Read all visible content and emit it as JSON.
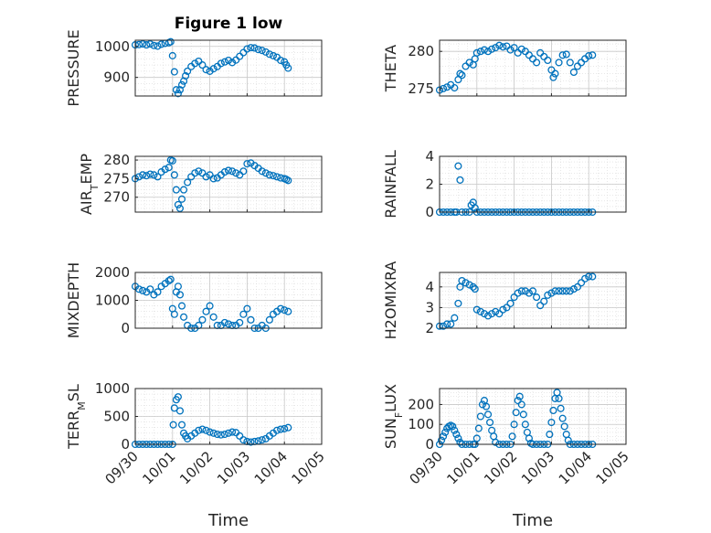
{
  "figure": {
    "title": "Figure 1 low"
  },
  "chart_data": [
    {
      "type": "scatter",
      "ylabel": "PRESSURE",
      "xlabel": "",
      "title": "Figure 1 low",
      "xlim": [
        0,
        5
      ],
      "ylim": [
        840,
        1020
      ],
      "yticks": [
        900,
        1000
      ],
      "x_ticks": [
        "09/30",
        "10/01",
        "10/02",
        "10/03",
        "10/04",
        "10/05"
      ],
      "series": [
        {
          "x": [
            0.0,
            0.1,
            0.2,
            0.3,
            0.4,
            0.5,
            0.6,
            0.7,
            0.8,
            0.9,
            0.95,
            1.0,
            1.05,
            1.1,
            1.15,
            1.2,
            1.25,
            1.3,
            1.35,
            1.4,
            1.5,
            1.6,
            1.7,
            1.8,
            1.9,
            2.0,
            2.1,
            2.2,
            2.3,
            2.4,
            2.5,
            2.6,
            2.7,
            2.8,
            2.9,
            3.0,
            3.1,
            3.2,
            3.3,
            3.4,
            3.5,
            3.6,
            3.7,
            3.8,
            3.9,
            4.0,
            4.05,
            4.1
          ],
          "y": [
            1005,
            1006,
            1008,
            1005,
            1008,
            1003,
            1001,
            1007,
            1010,
            1012,
            1015,
            970,
            918,
            860,
            848,
            860,
            876,
            888,
            905,
            920,
            935,
            945,
            952,
            940,
            925,
            920,
            928,
            935,
            945,
            950,
            955,
            948,
            956,
            968,
            980,
            992,
            996,
            995,
            990,
            987,
            982,
            975,
            970,
            965,
            955,
            950,
            940,
            930
          ]
        }
      ]
    },
    {
      "type": "scatter",
      "ylabel": "THETA",
      "xlabel": "",
      "xlim": [
        0,
        5
      ],
      "ylim": [
        274,
        281.5
      ],
      "yticks": [
        275,
        280
      ],
      "x_ticks": [
        "09/30",
        "10/01",
        "10/02",
        "10/03",
        "10/04",
        "10/05"
      ],
      "series": [
        {
          "x": [
            0.0,
            0.1,
            0.2,
            0.3,
            0.4,
            0.5,
            0.55,
            0.6,
            0.7,
            0.8,
            0.9,
            0.95,
            1.0,
            1.1,
            1.2,
            1.3,
            1.4,
            1.5,
            1.6,
            1.7,
            1.8,
            1.9,
            2.0,
            2.1,
            2.2,
            2.3,
            2.4,
            2.5,
            2.6,
            2.7,
            2.8,
            2.9,
            3.0,
            3.05,
            3.1,
            3.2,
            3.3,
            3.4,
            3.5,
            3.6,
            3.7,
            3.8,
            3.9,
            4.0,
            4.1
          ],
          "y": [
            274.8,
            275.0,
            275.2,
            275.5,
            275.1,
            276.2,
            277.0,
            276.8,
            278.0,
            278.5,
            278.2,
            279.0,
            279.8,
            280.0,
            280.2,
            280.0,
            280.3,
            280.5,
            280.8,
            280.6,
            280.7,
            280.2,
            280.5,
            279.8,
            280.3,
            280.0,
            279.5,
            279.0,
            278.5,
            279.8,
            279.3,
            278.8,
            277.5,
            276.5,
            277.0,
            278.5,
            279.5,
            279.6,
            278.5,
            277.2,
            278.0,
            278.5,
            279.0,
            279.4,
            279.5
          ]
        }
      ]
    },
    {
      "type": "scatter",
      "ylabel": "AIR_TEMP",
      "ylabel_main": "AIR",
      "ylabel_sub": "T",
      "ylabel_rest": "EMP",
      "xlabel": "",
      "xlim": [
        0,
        5
      ],
      "ylim": [
        266,
        281
      ],
      "yticks": [
        270,
        275,
        280
      ],
      "x_ticks": [
        "09/30",
        "10/01",
        "10/02",
        "10/03",
        "10/04",
        "10/05"
      ],
      "series": [
        {
          "x": [
            0.0,
            0.1,
            0.2,
            0.3,
            0.4,
            0.5,
            0.6,
            0.7,
            0.8,
            0.9,
            0.95,
            1.0,
            1.05,
            1.1,
            1.15,
            1.2,
            1.25,
            1.3,
            1.4,
            1.5,
            1.6,
            1.7,
            1.8,
            1.9,
            2.0,
            2.1,
            2.2,
            2.3,
            2.4,
            2.5,
            2.6,
            2.7,
            2.8,
            2.9,
            3.0,
            3.1,
            3.2,
            3.3,
            3.4,
            3.5,
            3.6,
            3.7,
            3.8,
            3.9,
            4.0,
            4.05,
            4.1
          ],
          "y": [
            275.0,
            275.5,
            276.0,
            275.8,
            276.2,
            276.0,
            275.5,
            276.8,
            277.5,
            278.0,
            280.0,
            279.8,
            276.0,
            272.0,
            268.0,
            267.0,
            269.5,
            272.0,
            274.0,
            275.5,
            276.5,
            277.0,
            276.5,
            275.5,
            276.0,
            275.0,
            275.2,
            276.0,
            276.8,
            277.2,
            277.0,
            276.5,
            276.0,
            277.0,
            279.0,
            279.2,
            278.5,
            277.8,
            277.0,
            276.5,
            276.0,
            275.8,
            275.5,
            275.2,
            275.0,
            274.8,
            274.5
          ]
        }
      ]
    },
    {
      "type": "scatter",
      "ylabel": "RAINFALL",
      "xlabel": "",
      "xlim": [
        0,
        5
      ],
      "ylim": [
        0,
        4
      ],
      "yticks": [
        0,
        2,
        4
      ],
      "x_ticks": [
        "09/30",
        "10/01",
        "10/02",
        "10/03",
        "10/04",
        "10/05"
      ],
      "series": [
        {
          "x": [
            0.0,
            0.1,
            0.2,
            0.3,
            0.4,
            0.45,
            0.5,
            0.55,
            0.6,
            0.7,
            0.8,
            0.85,
            0.9,
            0.95,
            1.0,
            1.1,
            1.2,
            1.3,
            1.4,
            1.5,
            1.6,
            1.7,
            1.8,
            1.9,
            2.0,
            2.1,
            2.2,
            2.3,
            2.4,
            2.5,
            2.6,
            2.7,
            2.8,
            2.9,
            3.0,
            3.1,
            3.2,
            3.3,
            3.4,
            3.5,
            3.6,
            3.7,
            3.8,
            3.9,
            4.0,
            4.1
          ],
          "y": [
            0,
            0,
            0,
            0,
            0,
            0,
            3.3,
            2.3,
            0,
            0,
            0,
            0.5,
            0.7,
            0.3,
            0,
            0,
            0,
            0,
            0,
            0,
            0,
            0,
            0,
            0,
            0,
            0,
            0,
            0,
            0,
            0,
            0,
            0,
            0,
            0,
            0,
            0,
            0,
            0,
            0,
            0,
            0,
            0,
            0,
            0,
            0,
            0
          ]
        }
      ]
    },
    {
      "type": "scatter",
      "ylabel": "MIXDEPTH",
      "xlabel": "",
      "xlim": [
        0,
        5
      ],
      "ylim": [
        0,
        2000
      ],
      "yticks": [
        0,
        1000,
        2000
      ],
      "x_ticks": [
        "09/30",
        "10/01",
        "10/02",
        "10/03",
        "10/04",
        "10/05"
      ],
      "series": [
        {
          "x": [
            0.0,
            0.1,
            0.2,
            0.3,
            0.4,
            0.5,
            0.6,
            0.7,
            0.8,
            0.9,
            0.95,
            1.0,
            1.05,
            1.1,
            1.15,
            1.2,
            1.25,
            1.3,
            1.4,
            1.5,
            1.6,
            1.7,
            1.8,
            1.9,
            2.0,
            2.1,
            2.2,
            2.3,
            2.4,
            2.5,
            2.6,
            2.7,
            2.8,
            2.9,
            3.0,
            3.1,
            3.2,
            3.3,
            3.4,
            3.5,
            3.6,
            3.7,
            3.8,
            3.9,
            4.0,
            4.1
          ],
          "y": [
            1500,
            1400,
            1350,
            1300,
            1400,
            1200,
            1300,
            1500,
            1600,
            1700,
            1750,
            700,
            500,
            1300,
            1500,
            1200,
            800,
            400,
            100,
            0,
            0,
            100,
            300,
            600,
            800,
            400,
            100,
            100,
            200,
            150,
            100,
            100,
            200,
            500,
            700,
            300,
            0,
            0,
            100,
            0,
            300,
            500,
            600,
            700,
            650,
            600
          ]
        }
      ]
    },
    {
      "type": "scatter",
      "ylabel": "H2OMIXRA",
      "xlabel": "",
      "xlim": [
        0,
        5
      ],
      "ylim": [
        2,
        4.7
      ],
      "yticks": [
        2,
        3,
        4
      ],
      "x_ticks": [
        "09/30",
        "10/01",
        "10/02",
        "10/03",
        "10/04",
        "10/05"
      ],
      "series": [
        {
          "x": [
            0.0,
            0.1,
            0.2,
            0.3,
            0.4,
            0.5,
            0.55,
            0.6,
            0.7,
            0.8,
            0.9,
            0.95,
            1.0,
            1.1,
            1.2,
            1.3,
            1.4,
            1.5,
            1.6,
            1.7,
            1.8,
            1.9,
            2.0,
            2.1,
            2.2,
            2.3,
            2.4,
            2.5,
            2.6,
            2.7,
            2.8,
            2.9,
            3.0,
            3.1,
            3.2,
            3.3,
            3.4,
            3.5,
            3.6,
            3.7,
            3.8,
            3.9,
            4.0,
            4.1
          ],
          "y": [
            2.1,
            2.1,
            2.2,
            2.2,
            2.5,
            3.2,
            4.0,
            4.3,
            4.2,
            4.1,
            4.0,
            3.9,
            2.9,
            2.8,
            2.7,
            2.6,
            2.7,
            2.8,
            2.7,
            2.9,
            3.0,
            3.2,
            3.5,
            3.7,
            3.8,
            3.8,
            3.7,
            3.8,
            3.5,
            3.1,
            3.3,
            3.6,
            3.7,
            3.8,
            3.8,
            3.8,
            3.8,
            3.8,
            3.9,
            4.0,
            4.2,
            4.4,
            4.5,
            4.5
          ]
        }
      ]
    },
    {
      "type": "scatter",
      "ylabel": "TERR_MSL",
      "ylabel_main": "TERR",
      "ylabel_sub": "M",
      "ylabel_rest": "SL",
      "xlabel": "Time",
      "xlim": [
        0,
        5
      ],
      "ylim": [
        0,
        1000
      ],
      "yticks": [
        0,
        500,
        1000
      ],
      "x_ticks": [
        "09/30",
        "10/01",
        "10/02",
        "10/03",
        "10/04",
        "10/05"
      ],
      "series": [
        {
          "x": [
            0.0,
            0.1,
            0.2,
            0.3,
            0.4,
            0.5,
            0.6,
            0.7,
            0.8,
            0.9,
            1.0,
            1.02,
            1.05,
            1.1,
            1.15,
            1.2,
            1.25,
            1.3,
            1.35,
            1.4,
            1.5,
            1.6,
            1.7,
            1.8,
            1.9,
            2.0,
            2.1,
            2.2,
            2.3,
            2.4,
            2.5,
            2.6,
            2.7,
            2.8,
            2.9,
            3.0,
            3.1,
            3.2,
            3.3,
            3.4,
            3.5,
            3.6,
            3.7,
            3.8,
            3.9,
            4.0,
            4.1
          ],
          "y": [
            0,
            0,
            0,
            0,
            0,
            0,
            0,
            0,
            0,
            0,
            0,
            350,
            650,
            800,
            850,
            600,
            350,
            200,
            150,
            100,
            150,
            200,
            250,
            270,
            250,
            220,
            200,
            180,
            170,
            180,
            200,
            220,
            210,
            150,
            80,
            50,
            40,
            50,
            60,
            80,
            100,
            150,
            200,
            250,
            270,
            280,
            300
          ]
        }
      ]
    },
    {
      "type": "scatter",
      "ylabel": "SUN_FLUX",
      "ylabel_main": "SUN",
      "ylabel_sub": "F",
      "ylabel_rest": "LUX",
      "xlabel": "Time",
      "xlim": [
        0,
        5
      ],
      "ylim": [
        0,
        280
      ],
      "yticks": [
        0,
        100,
        200
      ],
      "x_ticks": [
        "09/30",
        "10/01",
        "10/02",
        "10/03",
        "10/04",
        "10/05"
      ],
      "series": [
        {
          "x": [
            0.0,
            0.05,
            0.1,
            0.15,
            0.2,
            0.25,
            0.3,
            0.35,
            0.4,
            0.45,
            0.5,
            0.55,
            0.6,
            0.7,
            0.8,
            0.9,
            0.95,
            1.0,
            1.05,
            1.1,
            1.15,
            1.2,
            1.25,
            1.3,
            1.35,
            1.4,
            1.45,
            1.5,
            1.6,
            1.7,
            1.8,
            1.9,
            1.95,
            2.0,
            2.05,
            2.1,
            2.15,
            2.2,
            2.25,
            2.3,
            2.35,
            2.4,
            2.45,
            2.5,
            2.6,
            2.7,
            2.8,
            2.9,
            2.95,
            3.0,
            3.05,
            3.1,
            3.15,
            3.2,
            3.25,
            3.3,
            3.35,
            3.4,
            3.45,
            3.5,
            3.6,
            3.7,
            3.8,
            3.9,
            4.0,
            4.1
          ],
          "y": [
            0,
            20,
            40,
            60,
            80,
            90,
            95,
            90,
            70,
            50,
            30,
            10,
            0,
            0,
            0,
            0,
            0,
            30,
            80,
            140,
            200,
            220,
            190,
            150,
            110,
            70,
            40,
            10,
            0,
            0,
            0,
            0,
            40,
            100,
            160,
            220,
            240,
            200,
            150,
            100,
            60,
            30,
            5,
            0,
            0,
            0,
            0,
            0,
            50,
            110,
            170,
            230,
            260,
            230,
            180,
            130,
            90,
            50,
            20,
            0,
            0,
            0,
            0,
            0,
            0,
            0
          ]
        }
      ]
    }
  ]
}
